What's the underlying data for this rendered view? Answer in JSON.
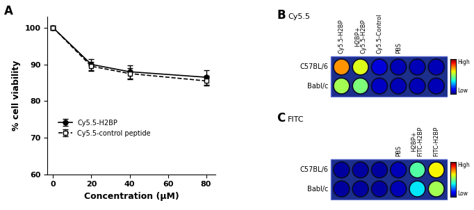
{
  "chart_data": {
    "type": "line",
    "panel_label": "A",
    "x_label": "Concentration (µM)",
    "y_label": "% cell viability",
    "x": [
      0,
      20,
      40,
      80
    ],
    "xlim": [
      -3,
      85
    ],
    "xticks": [
      0,
      20,
      40,
      60,
      80
    ],
    "ylim": [
      60,
      103
    ],
    "yticks": [
      60,
      70,
      80,
      90,
      100
    ],
    "legend": "lower left",
    "series": [
      {
        "name": "Cy5.5-H2BP",
        "color": "#000000",
        "marker": "filled_circle",
        "line_style": "solid",
        "values": [
          100,
          90,
          88,
          86.5
        ],
        "error": [
          0.5,
          1.5,
          1.8,
          2.0
        ]
      },
      {
        "name": "Cy5.5-control peptide",
        "color": "#000000",
        "marker": "open_square",
        "line_style": "dashed",
        "values": [
          100,
          89.5,
          87.5,
          85.5
        ],
        "error": [
          0.5,
          1.2,
          1.5,
          1.3
        ]
      }
    ]
  },
  "plates": [
    {
      "panel_label": "B",
      "title": "Cy5.5",
      "columns": [
        "Cy5.5-H2BP",
        "H2BP+\nCy5.5-H2BP",
        "Cy5.5-Control",
        "PBS",
        null,
        null
      ],
      "rows": [
        "C57BL/6",
        "Babl/c"
      ],
      "intensity": [
        [
          0.75,
          0.62,
          0.08,
          0.05,
          0.05,
          0.05
        ],
        [
          0.55,
          0.5,
          0.06,
          0.05,
          0.05,
          0.05
        ]
      ],
      "colorbar": {
        "range": [
          0,
          1
        ],
        "high_label": "High",
        "low_label": "Low"
      }
    },
    {
      "panel_label": "C",
      "title": "FITC",
      "columns": [
        null,
        null,
        null,
        "PBS",
        "H2BP+\nFITC-H2BP",
        "FITC-H2BP"
      ],
      "rows": [
        "C57BL/6",
        "Babl/c"
      ],
      "intensity": [
        [
          0.03,
          0.03,
          0.03,
          0.05,
          0.45,
          0.65
        ],
        [
          0.03,
          0.03,
          0.03,
          0.05,
          0.35,
          0.55
        ]
      ],
      "colorbar": {
        "range": [
          0,
          1
        ],
        "high_label": "High",
        "low_label": "Low"
      }
    }
  ]
}
